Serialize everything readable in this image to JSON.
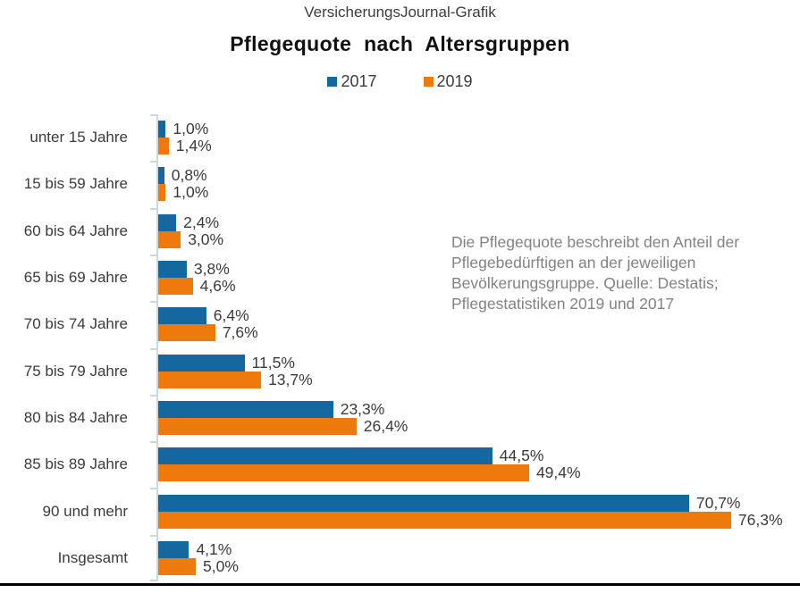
{
  "header": {
    "source_label": "VersicherungsJournal-Grafik"
  },
  "title": "Pflegequote nach Altersgruppen",
  "legend": {
    "items": [
      {
        "label": "2017",
        "color": "#15689F"
      },
      {
        "label": "2019",
        "color": "#EE7A0D"
      }
    ]
  },
  "annotation": {
    "lines": [
      "Die Pflegequote beschreibt den Anteil der",
      "Pflegebedürftigen an der jeweiligen",
      "Bevölkerungsgruppe.  Quelle: Destatis;",
      "Pflegestatistiken 2019 und 2017"
    ]
  },
  "chart_data": {
    "type": "bar",
    "orientation": "horizontal",
    "title": "Pflegequote nach Altersgruppen",
    "xlabel": "",
    "ylabel": "",
    "xlim": [
      0,
      85
    ],
    "grid": false,
    "legend_position": "top",
    "value_format": "german-decimal-percent",
    "categories": [
      "unter 15 Jahre",
      "15 bis 59 Jahre",
      "60 bis 64 Jahre",
      "65 bis 69 Jahre",
      "70 bis 74 Jahre",
      "75 bis 79 Jahre",
      "80 bis 84 Jahre",
      "85 bis 89 Jahre",
      "90 und mehr",
      "Insgesamt"
    ],
    "series": [
      {
        "name": "2017",
        "color": "#15689F",
        "values": [
          1.0,
          0.8,
          2.4,
          3.8,
          6.4,
          11.5,
          23.3,
          44.5,
          70.7,
          4.1
        ],
        "labels": [
          "1,0%",
          "0,8%",
          "2,4%",
          "3,8%",
          "6,4%",
          "11,5%",
          "23,3%",
          "44,5%",
          "70,7%",
          "4,1%"
        ]
      },
      {
        "name": "2019",
        "color": "#EE7A0D",
        "values": [
          1.4,
          1.0,
          3.0,
          4.6,
          7.6,
          13.7,
          26.4,
          49.4,
          76.3,
          5.0
        ],
        "labels": [
          "1,4%",
          "1,0%",
          "3,0%",
          "4,6%",
          "7,6%",
          "13,7%",
          "26,4%",
          "49,4%",
          "76,3%",
          "5,0%"
        ]
      }
    ]
  }
}
